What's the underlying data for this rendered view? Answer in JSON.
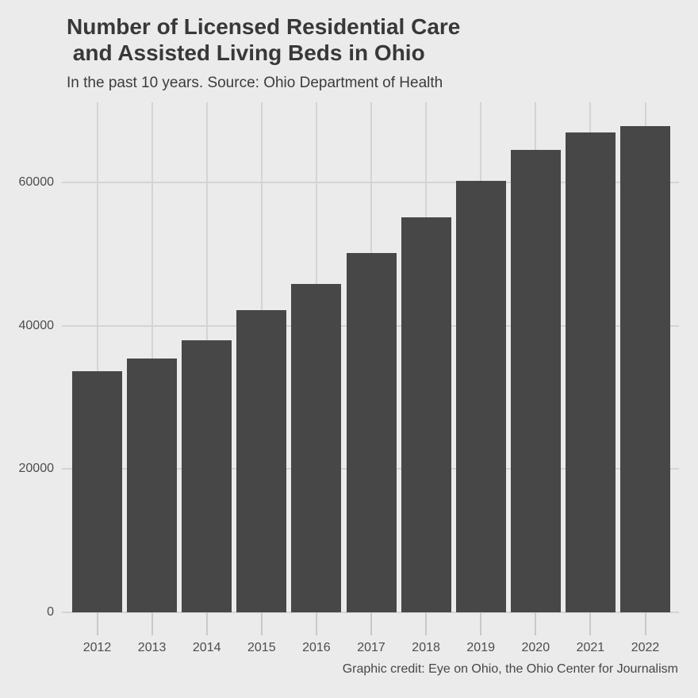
{
  "chart_data": {
    "type": "bar",
    "title": "Number of Licensed Residential Care\n and Assisted Living Beds in Ohio",
    "subtitle": "In the past 10 years. Source: Ohio Department of Health",
    "caption": "Graphic credit: Eye on Ohio, the Ohio Center for Journalism",
    "categories": [
      "2012",
      "2013",
      "2014",
      "2015",
      "2016",
      "2017",
      "2018",
      "2019",
      "2020",
      "2021",
      "2022"
    ],
    "values": [
      33700,
      35400,
      38000,
      42200,
      45800,
      50200,
      55100,
      60200,
      64600,
      67000,
      67900
    ],
    "xlabel": "",
    "ylabel": "",
    "ylim": [
      0,
      71200
    ],
    "yticks": [
      0,
      20000,
      40000,
      60000
    ],
    "grid": "major-only",
    "legend": false,
    "colors": {
      "background": "#EBEBEB",
      "bar": "#474747",
      "gridline": "#D4D4D4",
      "axis_tick": "#C9C9C9",
      "axis_text": "#4D4D4D",
      "title": "#383838",
      "subtitle": "#3C3C3C",
      "caption": "#474747"
    }
  }
}
